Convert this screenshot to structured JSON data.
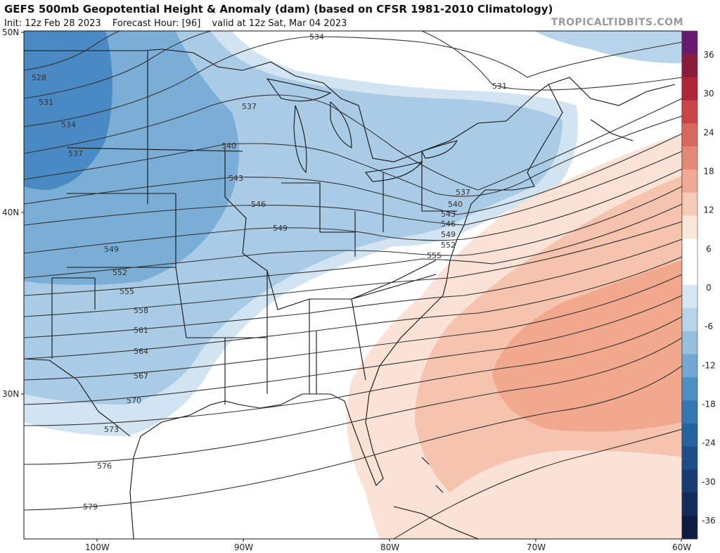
{
  "title": "GEFS 500mb Geopotential Height & Anomaly (dam) (based on CFSR 1981-2010 Climatology)",
  "subtitle": {
    "init": "Init: 12z Feb 28 2023",
    "forecast_hour": "Forecast Hour: [96]",
    "valid": "valid at 12z Sat, Mar 04 2023"
  },
  "brand": "TROPICALTIDBITS.COM",
  "latitude_labels": [
    "50N",
    "40N",
    "30N"
  ],
  "longitude_labels": [
    "100W",
    "90W",
    "80W",
    "70W",
    "60W"
  ],
  "colorbar": {
    "tick_labels": [
      "36",
      "30",
      "24",
      "18",
      "12",
      "6",
      "0",
      "-6",
      "-12",
      "-18",
      "-24",
      "-30",
      "-36"
    ],
    "colors": [
      "#6a1a6e",
      "#8c1a3a",
      "#b0243a",
      "#c84446",
      "#d8685c",
      "#e48a74",
      "#eeaa92",
      "#f6cab6",
      "#fbe6da",
      "#ffffff",
      "#ffffff",
      "#d6e6f2",
      "#b8d4ea",
      "#96bfdf",
      "#72a8d3",
      "#4f8fc4",
      "#3377b4",
      "#2462a0",
      "#1c4e8a",
      "#173c72",
      "#122b58",
      "#0d1c40"
    ]
  },
  "contour_labels": [
    "528",
    "531",
    "534",
    "537",
    "540",
    "543",
    "546",
    "549",
    "552",
    "555",
    "558",
    "561",
    "564",
    "567",
    "570",
    "573",
    "576",
    "579"
  ],
  "contour_labels_east": [
    "534",
    "531",
    "537",
    "540",
    "543",
    "546",
    "549",
    "552",
    "555"
  ],
  "colors": {
    "neg_strong": "#4a8ac4",
    "neg_mid": "#7aaed6",
    "neg_light": "#a9cbe6",
    "neg_faint": "#d2e4f2",
    "pos_faint": "#fbe2d6",
    "pos_light": "#f6c4ae",
    "pos_mid": "#f1a88c",
    "contour": "#333333",
    "border": "#111111"
  }
}
